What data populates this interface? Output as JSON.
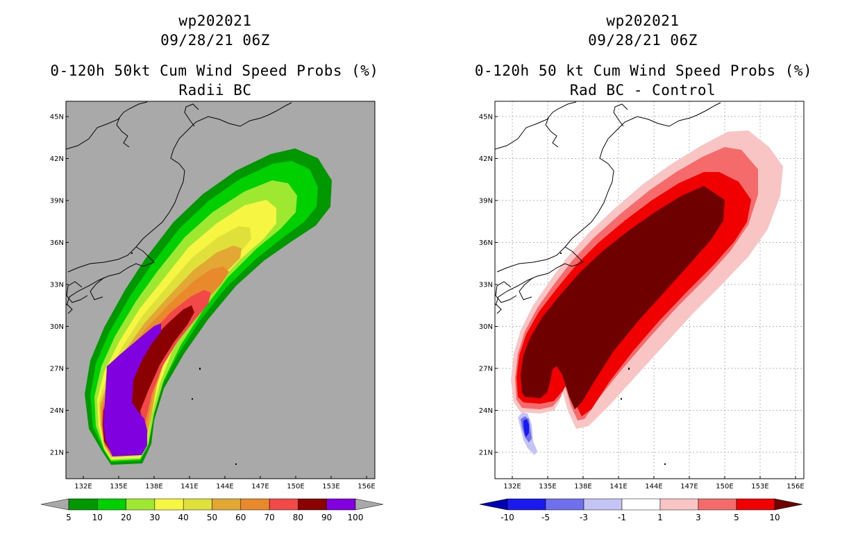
{
  "left_panel": {
    "storm_id": "wp202021",
    "datetime": "09/28/21 06Z",
    "title": "0-120h 50kt Cum Wind Speed Probs (%)",
    "subtitle": "Radii BC",
    "background_color": "#a9a9a9",
    "colorbar": {
      "labels": [
        "5",
        "10",
        "20",
        "30",
        "40",
        "50",
        "60",
        "70",
        "80",
        "90",
        "100"
      ],
      "colors": [
        "#009700",
        "#00cf00",
        "#9ee832",
        "#f5f542",
        "#e0e03a",
        "#e2a833",
        "#e88a2c",
        "#f24848",
        "#8b0000",
        "#8000df"
      ]
    }
  },
  "right_panel": {
    "storm_id": "wp202021",
    "datetime": "09/28/21 06Z",
    "title": "0-120h 50 kt Cum Wind Speed Probs (%)",
    "subtitle": "Rad BC - Control",
    "background_color": "#ffffff",
    "colorbar": {
      "labels": [
        "-10",
        "-5",
        "-3",
        "-1",
        "1",
        "3",
        "5",
        "10"
      ],
      "colors": [
        "#0000b0",
        "#1a1aef",
        "#7070ef",
        "#c4c4f5",
        "#ffffff",
        "#f8c4c4",
        "#f56a6a",
        "#f00000",
        "#6e0000"
      ]
    }
  },
  "axes": {
    "lon_ticks": [
      "132E",
      "135E",
      "138E",
      "141E",
      "144E",
      "147E",
      "150E",
      "153E",
      "156E"
    ],
    "lat_ticks": [
      "45N",
      "42N",
      "39N",
      "36N",
      "33N",
      "30N",
      "27N",
      "24N",
      "21N"
    ]
  }
}
